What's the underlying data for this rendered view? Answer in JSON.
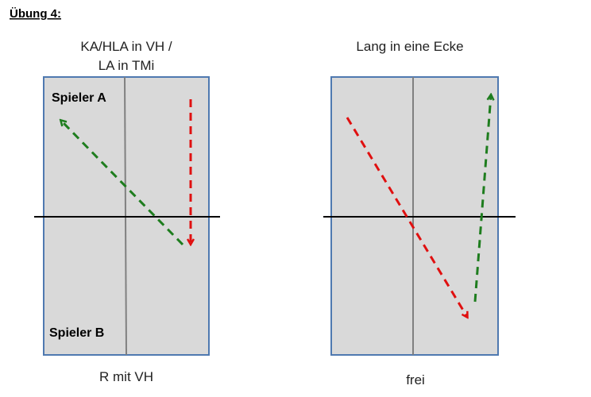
{
  "header": {
    "title": "Übung 4:"
  },
  "panels": [
    {
      "title_lines": [
        "KA/HLA in VH /",
        "LA in TMi"
      ],
      "player_top": "Spieler A",
      "player_bottom": "Spieler B",
      "caption": "R mit VH"
    },
    {
      "title_lines": [
        "Lang in eine Ecke"
      ],
      "caption": "frei"
    }
  ]
}
